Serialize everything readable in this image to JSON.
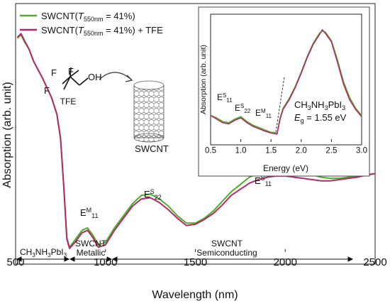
{
  "chart_data": [
    {
      "type": "line",
      "xlabel": "Wavelength (nm)",
      "ylabel": "Absorption (arb. unit)",
      "xlim": [
        500,
        2500
      ],
      "ylim": [
        0,
        1
      ],
      "xticks": [
        "500",
        "1000",
        "1500",
        "2000",
        "2500"
      ],
      "legend_position": "top-left",
      "series": [
        {
          "name": "SWCNT(T550nm = 41%)",
          "legend_parts": [
            "SWCNT(",
            "T",
            "550nm",
            " = 41%)"
          ],
          "color": "#4caf27",
          "x": [
            510,
            530,
            550,
            575,
            600,
            650,
            700,
            730,
            750,
            770,
            785,
            800,
            830,
            870,
            900,
            930,
            960,
            1000,
            1050,
            1100,
            1150,
            1200,
            1250,
            1300,
            1350,
            1400,
            1450,
            1500,
            1550,
            1600,
            1650,
            1700,
            1750,
            1800,
            1850,
            1900,
            1950,
            2000,
            2050,
            2100,
            2150,
            2200,
            2250,
            2300,
            2350,
            2400,
            2450,
            2500
          ],
          "y": [
            0.885,
            0.9,
            0.87,
            0.84,
            0.79,
            0.72,
            0.64,
            0.57,
            0.47,
            0.25,
            0.06,
            0.02,
            0.05,
            0.09,
            0.1,
            0.07,
            0.03,
            0.04,
            0.1,
            0.15,
            0.2,
            0.235,
            0.24,
            0.22,
            0.19,
            0.15,
            0.12,
            0.12,
            0.14,
            0.17,
            0.21,
            0.25,
            0.28,
            0.31,
            0.325,
            0.335,
            0.34,
            0.34,
            0.335,
            0.33,
            0.32,
            0.31,
            0.305,
            0.305,
            0.31,
            0.315,
            0.32,
            0.325
          ]
        },
        {
          "name": "SWCNT(T550nm = 41%) + TFE",
          "legend_parts": [
            "SWCNT(",
            "T",
            "550nm",
            " = 41%) + TFE"
          ],
          "color": "#b5286a",
          "x": [
            510,
            530,
            550,
            575,
            600,
            650,
            700,
            730,
            750,
            770,
            785,
            800,
            830,
            870,
            900,
            930,
            960,
            1000,
            1050,
            1100,
            1150,
            1200,
            1250,
            1300,
            1350,
            1400,
            1450,
            1500,
            1550,
            1600,
            1650,
            1700,
            1750,
            1800,
            1850,
            1900,
            1950,
            2000,
            2050,
            2100,
            2150,
            2200,
            2250,
            2300,
            2350,
            2400,
            2450,
            2500
          ],
          "y": [
            0.89,
            0.905,
            0.875,
            0.84,
            0.79,
            0.72,
            0.64,
            0.57,
            0.47,
            0.25,
            0.055,
            0.015,
            0.04,
            0.08,
            0.09,
            0.06,
            0.02,
            0.03,
            0.09,
            0.14,
            0.19,
            0.22,
            0.225,
            0.205,
            0.175,
            0.14,
            0.11,
            0.115,
            0.135,
            0.16,
            0.195,
            0.235,
            0.26,
            0.285,
            0.3,
            0.31,
            0.315,
            0.315,
            0.31,
            0.305,
            0.3,
            0.295,
            0.295,
            0.3,
            0.305,
            0.31,
            0.318,
            0.325
          ]
        }
      ],
      "annotations": {
        "e11m": {
          "pre": "E",
          "sup": "M",
          "sub": "11"
        },
        "e22s": {
          "pre": "E",
          "sup": "S",
          "sub": "22"
        },
        "e11s": {
          "pre": "E",
          "sup": "S",
          "sub": "11"
        },
        "tfe_label": "TFE",
        "swcnt_label": "SWCNT",
        "regions": [
          {
            "parts": [
              "CH",
              "3",
              "NH",
              "3",
              "PbI",
              "3"
            ]
          },
          {
            "lines": [
              "SWCNT",
              "Metallic"
            ]
          },
          {
            "lines": [
              "SWCNT",
              "Semiconducting"
            ]
          }
        ]
      }
    },
    {
      "type": "line",
      "xlabel": "Energy (eV)",
      "ylabel": "Absorption (arb. unit)",
      "xlim": [
        0.5,
        3.0
      ],
      "ylim": [
        0,
        1
      ],
      "xticks": [
        "0.5",
        "1.0",
        "1.5",
        "2.0",
        "2.5",
        "3.0"
      ],
      "series": [
        {
          "name": "SWCNT(T550nm = 41%)",
          "color": "#4caf27",
          "x": [
            0.5,
            0.6,
            0.7,
            0.8,
            0.9,
            1.0,
            1.1,
            1.2,
            1.3,
            1.4,
            1.5,
            1.55,
            1.6,
            1.65,
            1.7,
            1.8,
            1.9,
            2.0,
            2.1,
            2.2,
            2.3,
            2.35,
            2.4,
            2.5,
            2.6,
            2.7,
            2.8,
            2.9,
            3.0
          ],
          "y": [
            0.22,
            0.2,
            0.17,
            0.16,
            0.19,
            0.21,
            0.17,
            0.14,
            0.12,
            0.1,
            0.08,
            0.08,
            0.07,
            0.2,
            0.28,
            0.36,
            0.46,
            0.58,
            0.71,
            0.82,
            0.9,
            0.92,
            0.91,
            0.84,
            0.68,
            0.5,
            0.37,
            0.28,
            0.22
          ]
        },
        {
          "name": "SWCNT(T550nm = 41%) + TFE",
          "color": "#b5286a",
          "x": [
            0.5,
            0.6,
            0.7,
            0.8,
            0.9,
            1.0,
            1.1,
            1.2,
            1.3,
            1.4,
            1.5,
            1.55,
            1.6,
            1.65,
            1.7,
            1.8,
            1.9,
            2.0,
            2.1,
            2.2,
            2.3,
            2.35,
            2.4,
            2.5,
            2.6,
            2.7,
            2.8,
            2.9,
            3.0
          ],
          "y": [
            0.22,
            0.19,
            0.16,
            0.15,
            0.18,
            0.2,
            0.16,
            0.13,
            0.11,
            0.09,
            0.075,
            0.07,
            0.065,
            0.19,
            0.27,
            0.35,
            0.45,
            0.57,
            0.7,
            0.81,
            0.89,
            0.93,
            0.9,
            0.83,
            0.66,
            0.48,
            0.35,
            0.27,
            0.21
          ]
        }
      ],
      "annotations": {
        "e11s": {
          "pre": "E",
          "sup": "S",
          "sub": "11"
        },
        "e22s": {
          "pre": "E",
          "sup": "S",
          "sub": "22"
        },
        "e11m": {
          "pre": "E",
          "sup": "M",
          "sub": "11"
        },
        "compound": {
          "parts": [
            "CH",
            "3",
            "NH",
            "3",
            "PbI",
            "3"
          ]
        },
        "bandgap": {
          "sym": "E",
          "sub": "g",
          "rest": " = 1.55 eV"
        }
      }
    }
  ]
}
